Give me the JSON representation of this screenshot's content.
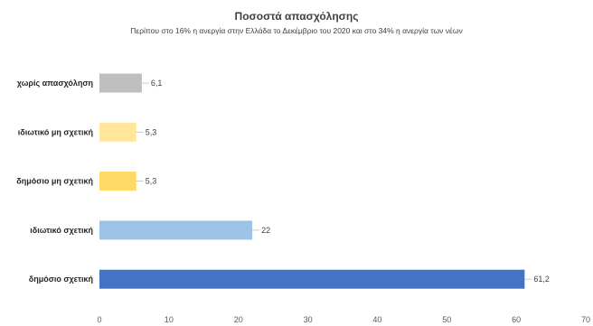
{
  "chart_data": {
    "type": "bar",
    "orientation": "horizontal",
    "title": "Ποσοστά απασχόλησης",
    "subtitle": "Περίπου στο 16% η ανεργία στην Ελλάδα το Δεκέμβριο του 2020 και στο 34% η ανεργία των νέων",
    "categories": [
      "χωρίς απασχόληση",
      "ιδιωτικό μη σχετική",
      "δημόσιο μη σχετική",
      "ιδιωτικό σχετική",
      "δημόσιο σχετική"
    ],
    "values": [
      6.1,
      5.3,
      5.3,
      22,
      61.2
    ],
    "data_labels": [
      "6,1",
      "5,3",
      "5,3",
      "22",
      "61,2"
    ],
    "bar_colors": [
      "#bfbfbf",
      "#ffe699",
      "#ffd966",
      "#9dc3e6",
      "#4472c4"
    ],
    "xlim": [
      0,
      70
    ],
    "xticks": [
      0,
      10,
      20,
      30,
      40,
      50,
      60,
      70
    ],
    "xlabel": "",
    "ylabel": "",
    "grid": false,
    "legend": "none"
  }
}
